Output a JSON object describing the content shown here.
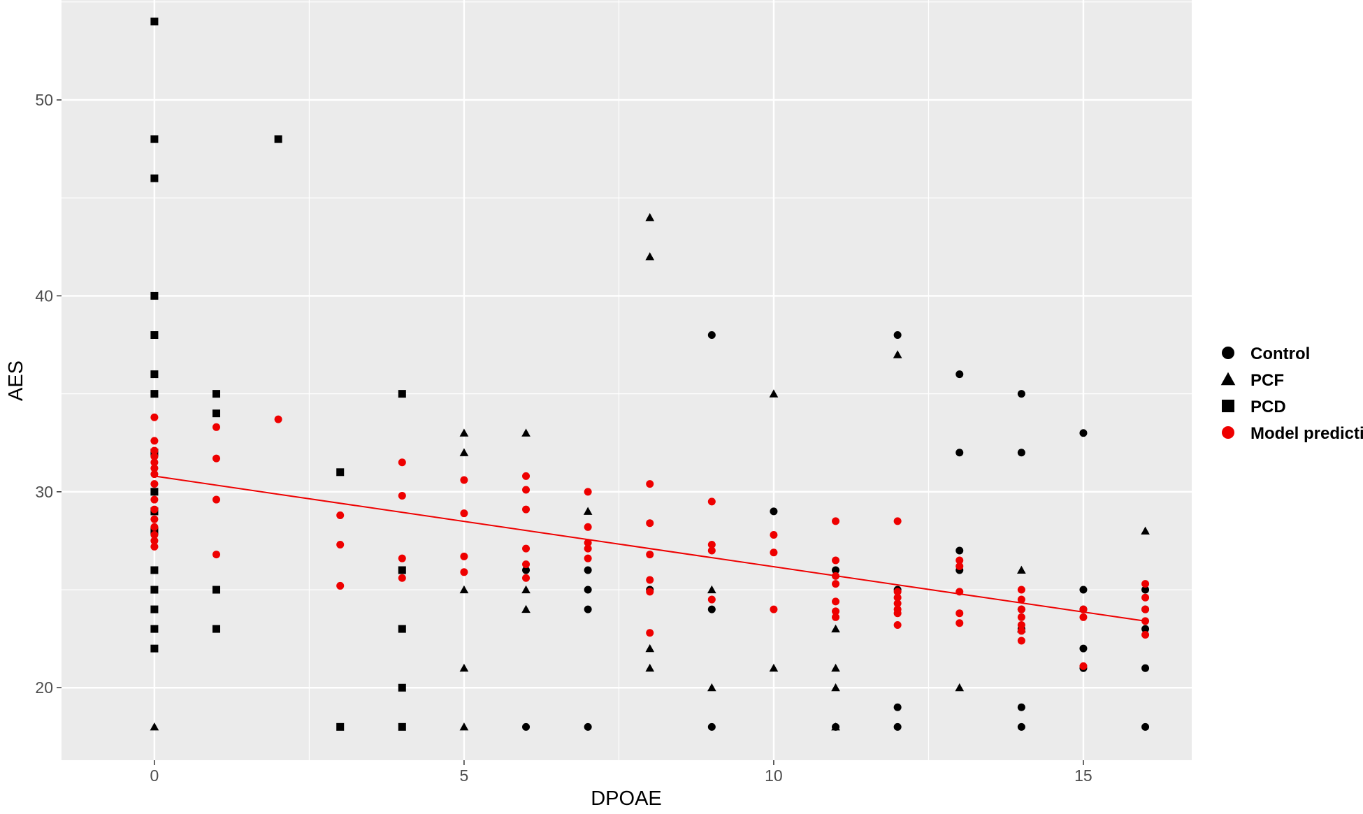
{
  "chart_data": {
    "type": "scatter",
    "xlabel": "DPOAE",
    "ylabel": "AES",
    "xlim": [
      -1.5,
      16.75
    ],
    "ylim": [
      16.3,
      55.1
    ],
    "x_ticks": [
      0,
      5,
      10,
      15
    ],
    "y_ticks": [
      20,
      30,
      40,
      50
    ],
    "x_tick_labels": [
      "0",
      "5",
      "10",
      "15"
    ],
    "y_tick_labels": [
      "20",
      "30",
      "40",
      "50"
    ],
    "grid": true,
    "legend_position": "right",
    "legend": [
      {
        "label": "Control",
        "shape": "circle",
        "color": "#000000"
      },
      {
        "label": "PCF",
        "shape": "triangle",
        "color": "#000000"
      },
      {
        "label": "PCD",
        "shape": "square",
        "color": "#000000"
      },
      {
        "label": "Model prediction",
        "shape": "circle",
        "color": "#ee0000"
      }
    ],
    "series": [
      {
        "name": "Control",
        "shape": "circle",
        "color": "#000000",
        "points": [
          [
            6,
            18
          ],
          [
            6,
            26
          ],
          [
            7,
            18
          ],
          [
            7,
            24
          ],
          [
            7,
            25
          ],
          [
            7,
            26
          ],
          [
            8,
            25
          ],
          [
            9,
            18
          ],
          [
            9,
            24
          ],
          [
            9,
            38
          ],
          [
            10,
            29
          ],
          [
            11,
            18
          ],
          [
            11,
            26
          ],
          [
            12,
            18
          ],
          [
            12,
            19
          ],
          [
            12,
            25
          ],
          [
            12,
            38
          ],
          [
            13,
            26
          ],
          [
            13,
            27
          ],
          [
            13,
            32
          ],
          [
            13,
            36
          ],
          [
            14,
            18
          ],
          [
            14,
            19
          ],
          [
            14,
            23
          ],
          [
            14,
            24
          ],
          [
            14,
            32
          ],
          [
            14,
            35
          ],
          [
            15,
            21
          ],
          [
            15,
            22
          ],
          [
            15,
            24
          ],
          [
            15,
            25
          ],
          [
            15,
            33
          ],
          [
            16,
            18
          ],
          [
            16,
            21
          ],
          [
            16,
            23
          ],
          [
            16,
            24
          ],
          [
            16,
            25
          ]
        ]
      },
      {
        "name": "PCF",
        "shape": "triangle",
        "color": "#000000",
        "points": [
          [
            0,
            18
          ],
          [
            5,
            18
          ],
          [
            5,
            21
          ],
          [
            5,
            25
          ],
          [
            5,
            32
          ],
          [
            5,
            33
          ],
          [
            6,
            24
          ],
          [
            6,
            25
          ],
          [
            6,
            33
          ],
          [
            7,
            29
          ],
          [
            8,
            21
          ],
          [
            8,
            22
          ],
          [
            8,
            42
          ],
          [
            8,
            44
          ],
          [
            9,
            20
          ],
          [
            9,
            25
          ],
          [
            10,
            21
          ],
          [
            10,
            35
          ],
          [
            11,
            18
          ],
          [
            11,
            20
          ],
          [
            11,
            21
          ],
          [
            11,
            23
          ],
          [
            12,
            37
          ],
          [
            13,
            20
          ],
          [
            14,
            23
          ],
          [
            14,
            26
          ],
          [
            16,
            28
          ]
        ]
      },
      {
        "name": "PCD",
        "shape": "square",
        "color": "#000000",
        "points": [
          [
            0,
            22
          ],
          [
            0,
            23
          ],
          [
            0,
            24
          ],
          [
            0,
            25
          ],
          [
            0,
            26
          ],
          [
            0,
            28
          ],
          [
            0,
            29
          ],
          [
            0,
            30
          ],
          [
            0,
            32
          ],
          [
            0,
            35
          ],
          [
            0,
            36
          ],
          [
            0,
            38
          ],
          [
            0,
            40
          ],
          [
            0,
            46
          ],
          [
            0,
            48
          ],
          [
            0,
            54
          ],
          [
            1,
            23
          ],
          [
            1,
            25
          ],
          [
            1,
            34
          ],
          [
            1,
            35
          ],
          [
            2,
            48
          ],
          [
            3,
            18
          ],
          [
            3,
            31
          ],
          [
            4,
            18
          ],
          [
            4,
            20
          ],
          [
            4,
            23
          ],
          [
            4,
            26
          ],
          [
            4,
            35
          ]
        ]
      },
      {
        "name": "Model prediction",
        "shape": "circle",
        "color": "#ee0000",
        "points": [
          [
            0,
            33.8
          ],
          [
            0,
            32.6
          ],
          [
            0,
            32.1
          ],
          [
            0,
            31.8
          ],
          [
            0,
            31.5
          ],
          [
            0,
            31.2
          ],
          [
            0,
            30.9
          ],
          [
            0,
            30.4
          ],
          [
            0,
            29.6
          ],
          [
            0,
            29.1
          ],
          [
            0,
            28.6
          ],
          [
            0,
            28.2
          ],
          [
            0,
            27.8
          ],
          [
            0,
            27.5
          ],
          [
            0,
            27.2
          ],
          [
            1,
            33.3
          ],
          [
            1,
            31.7
          ],
          [
            1,
            29.6
          ],
          [
            1,
            26.8
          ],
          [
            2,
            33.7
          ],
          [
            3,
            28.8
          ],
          [
            3,
            27.3
          ],
          [
            3,
            25.2
          ],
          [
            4,
            31.5
          ],
          [
            4,
            29.8
          ],
          [
            4,
            26.6
          ],
          [
            4,
            25.6
          ],
          [
            5,
            30.6
          ],
          [
            5,
            28.9
          ],
          [
            5,
            26.7
          ],
          [
            5,
            25.9
          ],
          [
            6,
            30.8
          ],
          [
            6,
            30.1
          ],
          [
            6,
            29.1
          ],
          [
            6,
            27.1
          ],
          [
            6,
            26.3
          ],
          [
            6,
            25.6
          ],
          [
            7,
            30.0
          ],
          [
            7,
            28.2
          ],
          [
            7,
            27.4
          ],
          [
            7,
            27.1
          ],
          [
            7,
            26.6
          ],
          [
            8,
            30.4
          ],
          [
            8,
            28.4
          ],
          [
            8,
            26.8
          ],
          [
            8,
            25.5
          ],
          [
            8,
            24.9
          ],
          [
            8,
            22.8
          ],
          [
            9,
            29.5
          ],
          [
            9,
            27.3
          ],
          [
            9,
            27.0
          ],
          [
            9,
            24.5
          ],
          [
            10,
            27.8
          ],
          [
            10,
            26.9
          ],
          [
            10,
            24.0
          ],
          [
            11,
            28.5
          ],
          [
            11,
            26.5
          ],
          [
            11,
            25.7
          ],
          [
            11,
            25.3
          ],
          [
            11,
            24.4
          ],
          [
            11,
            23.9
          ],
          [
            11,
            23.6
          ],
          [
            12,
            28.5
          ],
          [
            12,
            24.9
          ],
          [
            12,
            24.6
          ],
          [
            12,
            24.3
          ],
          [
            12,
            24.0
          ],
          [
            12,
            23.8
          ],
          [
            12,
            23.2
          ],
          [
            13,
            26.5
          ],
          [
            13,
            26.2
          ],
          [
            13,
            24.9
          ],
          [
            13,
            23.8
          ],
          [
            13,
            23.3
          ],
          [
            14,
            25.0
          ],
          [
            14,
            24.5
          ],
          [
            14,
            24.0
          ],
          [
            14,
            23.6
          ],
          [
            14,
            23.2
          ],
          [
            14,
            22.9
          ],
          [
            14,
            22.4
          ],
          [
            15,
            24.0
          ],
          [
            15,
            23.6
          ],
          [
            15,
            21.1
          ],
          [
            16,
            25.3
          ],
          [
            16,
            24.6
          ],
          [
            16,
            24.0
          ],
          [
            16,
            23.4
          ],
          [
            16,
            22.7
          ]
        ]
      }
    ],
    "trend_line": {
      "name": "Model prediction",
      "color": "#ee0000",
      "x": [
        0,
        16
      ],
      "y": [
        30.8,
        23.4
      ]
    }
  }
}
